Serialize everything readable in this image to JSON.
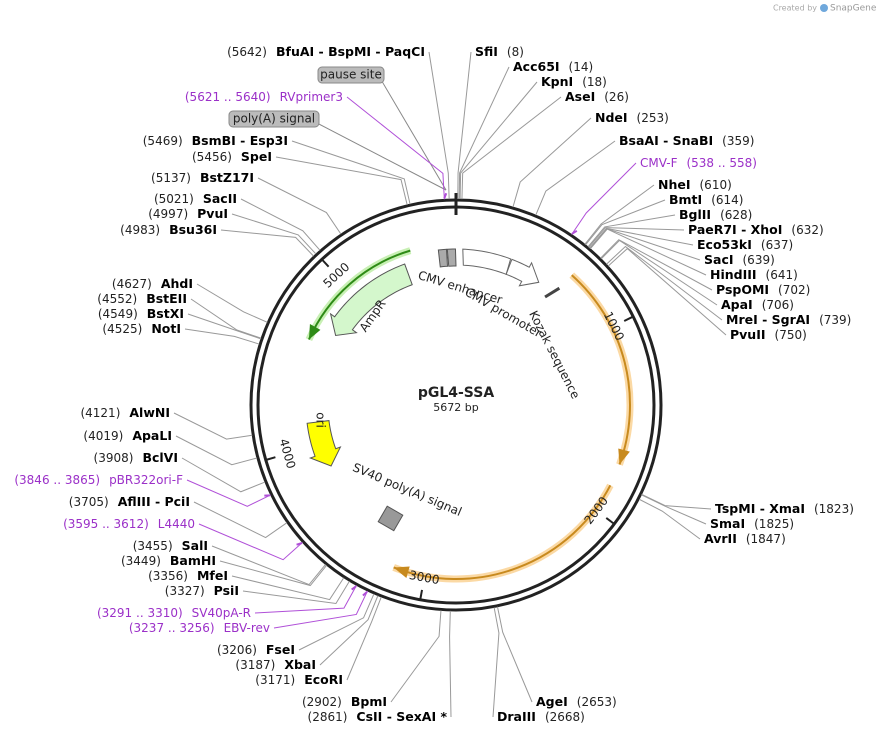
{
  "header": {
    "watermark": "Created by",
    "brand": "SnapGene"
  },
  "map": {
    "name": "pGL4-SSA",
    "size": "5672 bp",
    "ruler": [
      "1000",
      "2000",
      "3000",
      "4000",
      "5000"
    ],
    "flags": [
      "pause site",
      "poly(A) signal"
    ],
    "features": [
      "CMV enhancer",
      "CMV promoter",
      "Kozak sequence",
      "AmpR",
      "ori",
      "SV40 poly(A) signal"
    ],
    "sites": [
      {
        "name": "SfiI",
        "position": "(8)"
      },
      {
        "name": "Acc65I",
        "position": "(14)"
      },
      {
        "name": "KpnI",
        "position": "(18)"
      },
      {
        "name": "AseI",
        "position": "(26)"
      },
      {
        "name": "NdeI",
        "position": "(253)"
      },
      {
        "name": "BsaAI - SnaBI",
        "position": "(359)"
      },
      {
        "name": "NheI",
        "position": "(610)"
      },
      {
        "name": "BmtI",
        "position": "(614)"
      },
      {
        "name": "BglII",
        "position": "(628)"
      },
      {
        "name": "PaeR7I - XhoI",
        "position": "(632)"
      },
      {
        "name": "Eco53kI",
        "position": "(637)"
      },
      {
        "name": "SacI",
        "position": "(639)"
      },
      {
        "name": "HindIII",
        "position": "(641)"
      },
      {
        "name": "PspOMI",
        "position": "(702)"
      },
      {
        "name": "ApaI",
        "position": "(706)"
      },
      {
        "name": "MreI - SgrAI",
        "position": "(739)"
      },
      {
        "name": "PvuII",
        "position": "(750)"
      },
      {
        "name": "TspMI - XmaI",
        "position": "(1823)"
      },
      {
        "name": "SmaI",
        "position": "(1825)"
      },
      {
        "name": "AvrII",
        "position": "(1847)"
      },
      {
        "name": "AgeI",
        "position": "(2653)"
      },
      {
        "name": "DraIII",
        "position": "(2668)"
      },
      {
        "name": "CsII - SexAI *",
        "position": "(2861)"
      },
      {
        "name": "BpmI",
        "position": "(2902)"
      },
      {
        "name": "EcoRI",
        "position": "(3171)"
      },
      {
        "name": "XbaI",
        "position": "(3187)"
      },
      {
        "name": "FseI",
        "position": "(3206)"
      },
      {
        "name": "PsiI",
        "position": "(3327)"
      },
      {
        "name": "MfeI",
        "position": "(3356)"
      },
      {
        "name": "BamHI",
        "position": "(3449)"
      },
      {
        "name": "SalI",
        "position": "(3455)"
      },
      {
        "name": "AflIII - PciI",
        "position": "(3705)"
      },
      {
        "name": "BclVI",
        "position": "(3908)"
      },
      {
        "name": "ApaLI",
        "position": "(4019)"
      },
      {
        "name": "AlwNI",
        "position": "(4121)"
      },
      {
        "name": "NotI",
        "position": "(4525)"
      },
      {
        "name": "BstXI",
        "position": "(4549)"
      },
      {
        "name": "BstEII",
        "position": "(4552)"
      },
      {
        "name": "AhdI",
        "position": "(4627)"
      },
      {
        "name": "Bsu36I",
        "position": "(4983)"
      },
      {
        "name": "PvuI",
        "position": "(4997)"
      },
      {
        "name": "SacII",
        "position": "(5021)"
      },
      {
        "name": "BstZ17I",
        "position": "(5137)"
      },
      {
        "name": "SpeI",
        "position": "(5456)"
      },
      {
        "name": "BsmBI - Esp3I",
        "position": "(5469)"
      },
      {
        "name": "BfuAI - BspMI - PaqCI",
        "position": "(5642)"
      }
    ],
    "primers": [
      {
        "name": "CMV-F",
        "range": "(538 .. 558)"
      },
      {
        "name": "RVprimer3",
        "range": "(5621 .. 5640)"
      },
      {
        "name": "pBR322ori-F",
        "range": "(3846 .. 3865)"
      },
      {
        "name": "L4440",
        "range": "(3595 .. 3612)"
      },
      {
        "name": "SV40pA-R",
        "range": "(3291 .. 3310)"
      },
      {
        "name": "EBV-rev",
        "range": "(3237 .. 3256)"
      }
    ]
  }
}
